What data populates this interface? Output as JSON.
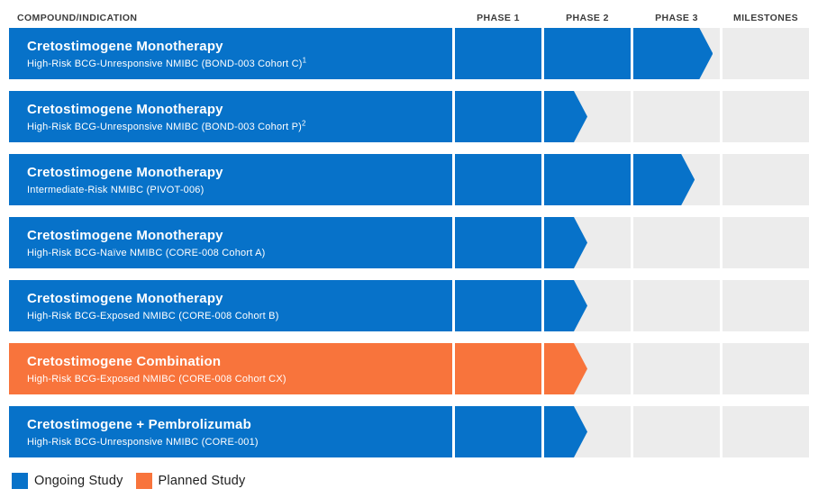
{
  "chart_data": {
    "type": "bar",
    "orientation": "horizontal",
    "row_header": "COMPOUND/INDICATION",
    "columns": [
      "PHASE 1",
      "PHASE 2",
      "PHASE 3",
      "MILESTONES"
    ],
    "rows": [
      {
        "compound": "Cretostimogene Monotherapy",
        "indication": "High-Risk BCG-Unresponsive NMIBC (BOND-003 Cohort C)",
        "footnote": "1",
        "status": "ongoing",
        "phase_reached": "Phase 3",
        "phase_fill": [
          1,
          1,
          0.92,
          0
        ]
      },
      {
        "compound": "Cretostimogene Monotherapy",
        "indication": "High-Risk BCG-Unresponsive NMIBC (BOND-003 Cohort P)",
        "footnote": "2",
        "status": "ongoing",
        "phase_reached": "Phase 2",
        "phase_fill": [
          1,
          0.5,
          0,
          0
        ]
      },
      {
        "compound": "Cretostimogene Monotherapy",
        "indication": "Intermediate-Risk NMIBC (PIVOT-006)",
        "footnote": "",
        "status": "ongoing",
        "phase_reached": "Phase 3",
        "phase_fill": [
          1,
          1,
          0.71,
          0
        ]
      },
      {
        "compound": "Cretostimogene Monotherapy",
        "indication": "High-Risk BCG-Naïve NMIBC (CORE-008 Cohort A)",
        "footnote": "",
        "status": "ongoing",
        "phase_reached": "Phase 2",
        "phase_fill": [
          1,
          0.5,
          0,
          0
        ]
      },
      {
        "compound": "Cretostimogene Monotherapy",
        "indication": "High-Risk BCG-Exposed NMIBC (CORE-008 Cohort B)",
        "footnote": "",
        "status": "ongoing",
        "phase_reached": "Phase 2",
        "phase_fill": [
          1,
          0.5,
          0,
          0
        ]
      },
      {
        "compound": "Cretostimogene Combination",
        "indication": "High-Risk BCG-Exposed NMIBC (CORE-008 Cohort CX)",
        "footnote": "",
        "status": "planned",
        "phase_reached": "Phase 2",
        "phase_fill": [
          1,
          0.5,
          0,
          0
        ]
      },
      {
        "compound": "Cretostimogene + Pembrolizumab",
        "indication": "High-Risk BCG-Unresponsive NMIBC (CORE-001)",
        "footnote": "",
        "status": "ongoing",
        "phase_reached": "Phase 2",
        "phase_fill": [
          1,
          0.5,
          0,
          0
        ]
      }
    ],
    "legend": [
      {
        "label": "Ongoing Study",
        "status": "ongoing",
        "color": "#0772c9"
      },
      {
        "label": "Planned Study",
        "status": "planned",
        "color": "#f8743c"
      }
    ],
    "status_colors": {
      "ongoing": "#0772c9",
      "planned": "#f8743c"
    },
    "track_color": "#ececec"
  }
}
